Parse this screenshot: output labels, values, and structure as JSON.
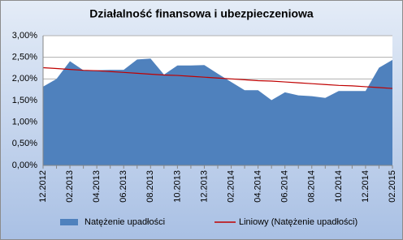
{
  "chart_data": {
    "type": "area",
    "title": "Działalność finansowa i ubezpieczeniowa",
    "categories": [
      "12.2012",
      null,
      "02.2013",
      null,
      "04.2013",
      null,
      "06.2013",
      null,
      "08.2013",
      null,
      "10.2013",
      null,
      "12.2013",
      null,
      "02.2014",
      null,
      "04.2014",
      null,
      "06.2014",
      null,
      "08.2014",
      null,
      "10.2014",
      null,
      "12.2014",
      null,
      "02.2015"
    ],
    "series": [
      {
        "name": "Natężenie upadłości",
        "type": "area",
        "color": "#4f81bd",
        "values": [
          1.82,
          2.0,
          2.41,
          2.2,
          2.2,
          2.21,
          2.21,
          2.45,
          2.47,
          2.1,
          2.31,
          2.31,
          2.32,
          2.12,
          1.93,
          1.74,
          1.74,
          1.51,
          1.69,
          1.62,
          1.6,
          1.56,
          1.72,
          1.72,
          1.72,
          2.26,
          2.44
        ]
      },
      {
        "name": "Liniowy (Natężenie upadłości)",
        "type": "line",
        "color": "#c00000",
        "values": [
          2.26,
          2.24,
          2.22,
          2.2,
          2.19,
          2.17,
          2.15,
          2.13,
          2.11,
          2.09,
          2.08,
          2.06,
          2.04,
          2.02,
          2.0,
          1.98,
          1.96,
          1.95,
          1.93,
          1.91,
          1.89,
          1.87,
          1.85,
          1.84,
          1.82,
          1.8,
          1.78
        ]
      }
    ],
    "ylim": [
      0,
      3
    ],
    "yticks": [
      {
        "value": 0,
        "label": "0,00%"
      },
      {
        "value": 0.5,
        "label": "0,50%"
      },
      {
        "value": 1,
        "label": "1,00%"
      },
      {
        "value": 1.5,
        "label": "1,50%"
      },
      {
        "value": 2,
        "label": "2,00%"
      },
      {
        "value": 2.5,
        "label": "2,50%"
      },
      {
        "value": 3,
        "label": "3,00%"
      }
    ],
    "grid": true,
    "legend": "bottom"
  }
}
